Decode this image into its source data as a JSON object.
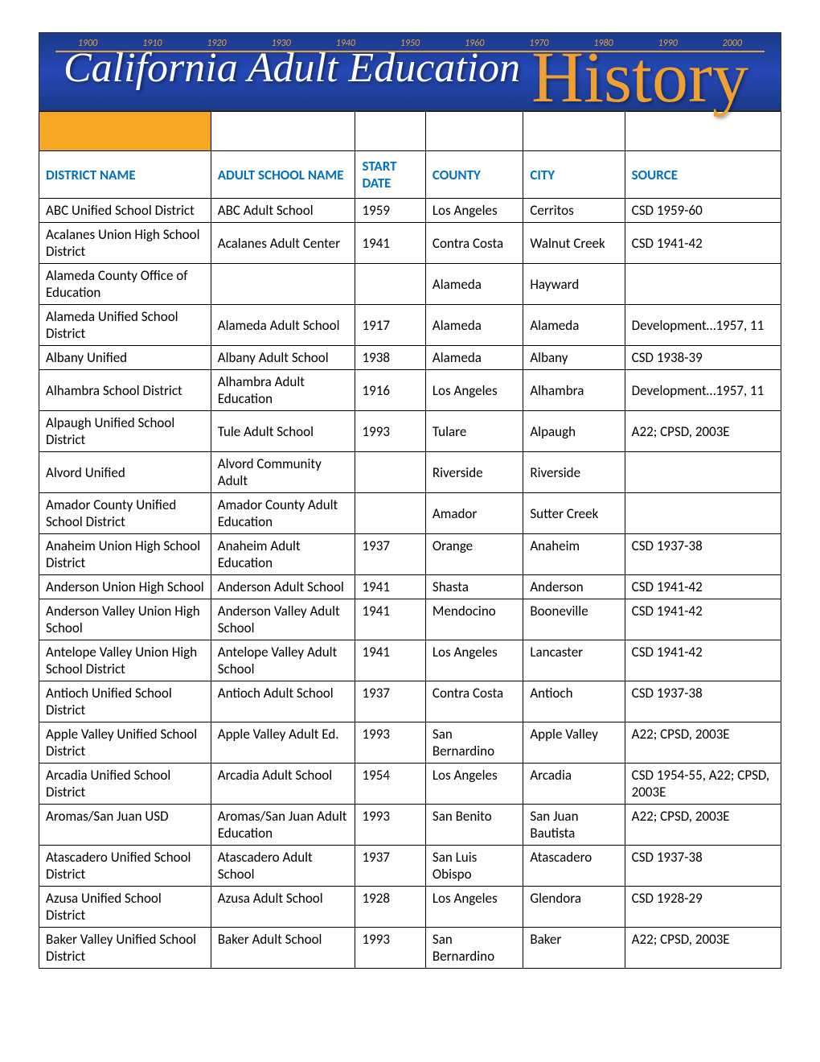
{
  "banner": {
    "years": [
      "1900",
      "1910",
      "1920",
      "1930",
      "1940",
      "1950",
      "1960",
      "1970",
      "1980",
      "1990",
      "2000"
    ],
    "title_left": "California Adult Education",
    "title_right": "History"
  },
  "table": {
    "headers": [
      "DISTRICT NAME",
      "ADULT SCHOOL NAME",
      "START DATE",
      "COUNTY",
      "CITY",
      "SOURCE"
    ],
    "rows": [
      [
        "ABC Unified School District",
        "ABC Adult School",
        "1959",
        "Los Angeles",
        "Cerritos",
        "CSD 1959-60"
      ],
      [
        "Acalanes Union High School District",
        "Acalanes Adult Center",
        "1941",
        "Contra Costa",
        "Walnut Creek",
        "CSD 1941-42"
      ],
      [
        "Alameda County Office of Education",
        "",
        "",
        "Alameda",
        "Hayward",
        ""
      ],
      [
        "Alameda Unified School District",
        "Alameda Adult School",
        "1917",
        "Alameda",
        "Alameda",
        "Development…1957, 11"
      ],
      [
        "Albany Unified",
        "Albany Adult School",
        "1938",
        "Alameda",
        "Albany",
        "CSD 1938-39"
      ],
      [
        "Alhambra School District",
        "Alhambra Adult Education",
        "1916",
        "Los Angeles",
        "Alhambra",
        "Development…1957, 11"
      ],
      [
        "Alpaugh Unified School District",
        "Tule Adult School",
        "1993",
        "Tulare",
        "Alpaugh",
        "A22; CPSD, 2003E"
      ],
      [
        "Alvord Unified",
        "Alvord Community Adult",
        "",
        "Riverside",
        "Riverside",
        ""
      ],
      [
        "Amador County Unified School District",
        "Amador County Adult Education",
        "",
        "Amador",
        "Sutter Creek",
        ""
      ],
      [
        "Anaheim Union High School District",
        "Anaheim Adult Education",
        "1937",
        "Orange",
        "Anaheim",
        "CSD 1937-38"
      ],
      [
        "Anderson Union High School",
        "Anderson Adult School",
        "1941",
        "Shasta",
        "Anderson",
        "CSD 1941-42"
      ],
      [
        "Anderson Valley Union High School",
        "Anderson Valley Adult School",
        "1941",
        "Mendocino",
        "Booneville",
        "CSD 1941-42"
      ],
      [
        "Antelope Valley Union High School District",
        "Antelope Valley Adult School",
        "1941",
        "Los Angeles",
        "Lancaster",
        "CSD 1941-42"
      ],
      [
        "Antioch Unified School District",
        "Antioch Adult School",
        "1937",
        "Contra Costa",
        "Antioch",
        "CSD 1937-38"
      ],
      [
        "Apple Valley Unified School District",
        "Apple Valley Adult Ed.",
        "1993",
        "San Bernardino",
        "Apple Valley",
        "A22; CPSD, 2003E"
      ],
      [
        "Arcadia Unified School District",
        "Arcadia Adult School",
        "1954",
        "Los Angeles",
        "Arcadia",
        "CSD 1954-55, A22; CPSD, 2003E"
      ],
      [
        "Aromas/San Juan USD",
        "Aromas/San Juan Adult Education",
        "1993",
        "San Benito",
        "San Juan Bautista",
        "A22; CPSD, 2003E"
      ],
      [
        "Atascadero Unified School District",
        "Atascadero Adult School",
        "1937",
        "San Luis Obispo",
        "Atascadero",
        "CSD 1937-38"
      ],
      [
        "Azusa Unified School District",
        "Azusa Adult School",
        "1928",
        "Los Angeles",
        "Glendora",
        "CSD 1928-29"
      ],
      [
        "Baker Valley Unified School District",
        "Baker Adult School",
        "1993",
        "San Bernardino",
        "Baker",
        "A22; CPSD, 2003E"
      ]
    ],
    "row_valign": [
      "bottom",
      "middle",
      "middle",
      "middle",
      "middle",
      "middle",
      "middle",
      "middle",
      "middle",
      "top",
      "top",
      "top",
      "top",
      "top",
      "top",
      "top",
      "top",
      "top",
      "top",
      "top"
    ]
  }
}
